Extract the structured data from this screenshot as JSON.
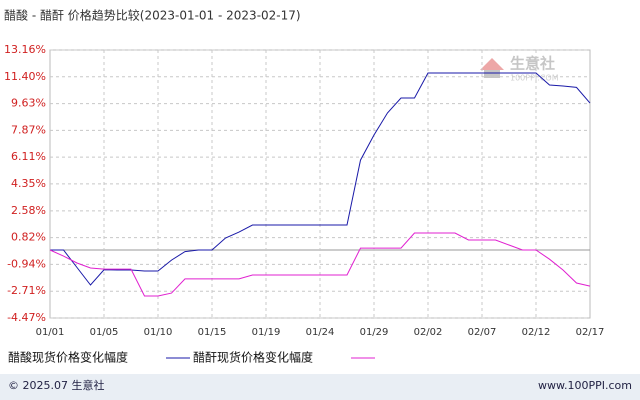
{
  "chart_data": {
    "type": "line",
    "title": "醋酸 - 醋酐 价格趋势比较(2023-01-01 - 2023-02-17)",
    "categories": [
      "01/01",
      null,
      null,
      null,
      "01/05",
      null,
      null,
      null,
      "01/10",
      null,
      null,
      null,
      "01/15",
      null,
      null,
      null,
      "01/19",
      null,
      null,
      null,
      "01/24",
      null,
      null,
      null,
      "01/29",
      null,
      null,
      null,
      "02/02",
      null,
      null,
      null,
      "02/07",
      null,
      null,
      null,
      "02/12",
      null,
      null,
      null,
      "02/17"
    ],
    "series": [
      {
        "name": "醋酸现货价格变化幅度",
        "color": "#1a1aa8",
        "values": [
          0,
          0,
          -1.15,
          -2.3,
          -1.3,
          -1.31,
          -1.31,
          -1.38,
          -1.38,
          -0.66,
          -0.1,
          0,
          0,
          0.79,
          1.18,
          1.65,
          1.65,
          1.65,
          1.65,
          1.65,
          1.65,
          1.65,
          1.65,
          5.92,
          7.57,
          9.02,
          10.0,
          10.0,
          11.65,
          11.65,
          11.65,
          11.65,
          11.65,
          11.65,
          11.65,
          11.65,
          11.65,
          10.86,
          10.79,
          10.7,
          9.67
        ]
      },
      {
        "name": "醋酐现货价格变化幅度",
        "color": "#e020d0",
        "values": [
          0,
          -0.4,
          -0.85,
          -1.18,
          -1.25,
          -1.25,
          -1.25,
          -3.02,
          -3.02,
          -2.83,
          -1.9,
          -1.9,
          -1.9,
          -1.9,
          -1.9,
          -1.64,
          -1.64,
          -1.64,
          -1.64,
          -1.64,
          -1.64,
          -1.64,
          -1.64,
          0.13,
          0.13,
          0.13,
          0.13,
          1.12,
          1.12,
          1.12,
          1.12,
          0.66,
          0.66,
          0.66,
          0.33,
          0,
          0,
          -0.6,
          -1.31,
          -2.17,
          -2.37
        ]
      }
    ],
    "ylim": [
      -4.47,
      13.16
    ],
    "yticks": [
      {
        "value": 13.16,
        "label": "13.16%"
      },
      {
        "value": 11.4,
        "label": "11.40%"
      },
      {
        "value": 9.63,
        "label": "9.63%"
      },
      {
        "value": 7.87,
        "label": "7.87%"
      },
      {
        "value": 6.11,
        "label": "6.11%"
      },
      {
        "value": 4.35,
        "label": "4.35%"
      },
      {
        "value": 2.58,
        "label": "2.58%"
      },
      {
        "value": 0.82,
        "label": "0.82%"
      },
      {
        "value": -0.94,
        "label": "-0.94%"
      },
      {
        "value": -2.71,
        "label": "-2.71%"
      },
      {
        "value": -4.47,
        "label": "-4.47%"
      }
    ],
    "grid": true
  },
  "watermark": {
    "name": "生意社",
    "url": "100PPI.COM"
  },
  "footer": {
    "copyright": "© 2025.07 生意社",
    "site": "www.100PPI.com"
  }
}
